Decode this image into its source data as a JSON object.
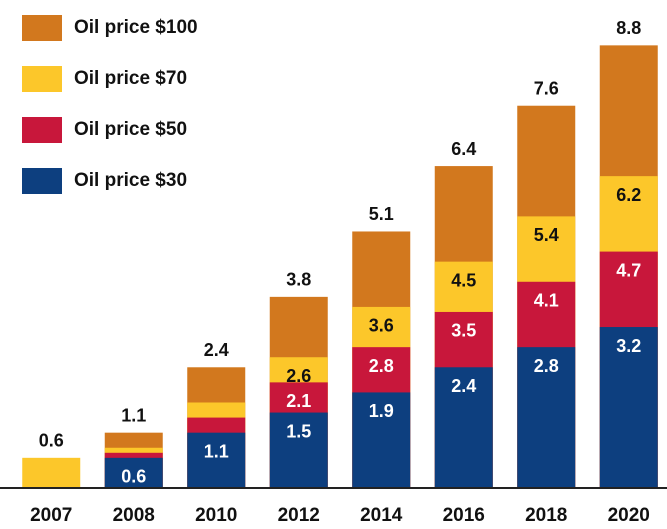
{
  "chart_data": {
    "type": "bar",
    "overlap": true,
    "categories": [
      "2007",
      "2008",
      "2010",
      "2012",
      "2014",
      "2016",
      "2018",
      "2020"
    ],
    "series": [
      {
        "name": "Oil price $100",
        "color": "#d2781e",
        "label_color": "#111111",
        "values": [
          null,
          1.1,
          2.4,
          3.8,
          5.1,
          6.4,
          7.6,
          8.8
        ],
        "value_labels": [
          null,
          "1.1",
          "2.4",
          "3.8",
          "5.1",
          "6.4",
          "7.6",
          "8.8"
        ]
      },
      {
        "name": "Oil price $70",
        "color": "#fcc72a",
        "label_color": "#111111",
        "values": [
          0.6,
          0.8,
          1.7,
          2.6,
          3.6,
          4.5,
          5.4,
          6.2
        ],
        "value_labels": [
          "0.6",
          null,
          null,
          "2.6",
          "3.6",
          "4.5",
          "5.4",
          "6.2"
        ]
      },
      {
        "name": "Oil price $50",
        "color": "#c8173b",
        "label_color": "#ffffff",
        "values": [
          null,
          0.7,
          1.4,
          2.1,
          2.8,
          3.5,
          4.1,
          4.7
        ],
        "value_labels": [
          null,
          null,
          null,
          "2.1",
          "2.8",
          "3.5",
          "4.1",
          "4.7"
        ]
      },
      {
        "name": "Oil price $30",
        "color": "#0d3f7f",
        "label_color": "#ffffff",
        "values": [
          null,
          0.6,
          1.1,
          1.5,
          1.9,
          2.4,
          2.8,
          3.2
        ],
        "value_labels": [
          null,
          "0.6",
          "1.1",
          "1.5",
          "1.9",
          "2.4",
          "2.8",
          "3.2"
        ]
      }
    ],
    "legend": "top-left"
  }
}
